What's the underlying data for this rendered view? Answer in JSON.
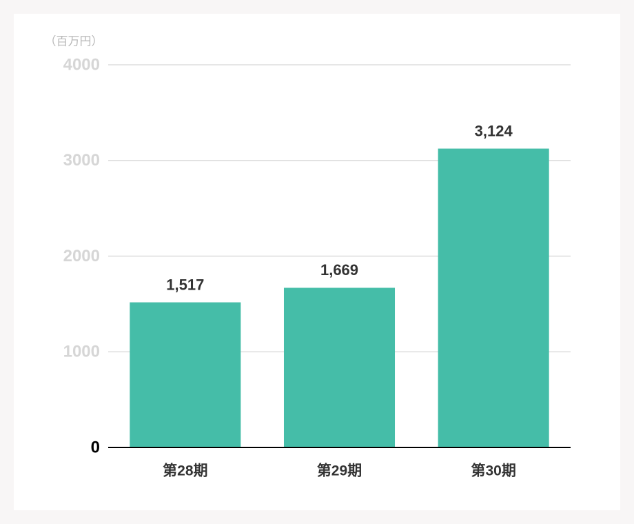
{
  "chart_data": {
    "type": "bar",
    "ylabel": "（百万円）",
    "categories": [
      "第28期",
      "第29期",
      "第30期"
    ],
    "values": [
      1517,
      1669,
      3124
    ],
    "value_labels": [
      "1,517",
      "1,669",
      "3,124"
    ],
    "color": "#45bda8",
    "ylim": [
      0,
      4000
    ],
    "yticks": [
      0,
      1000,
      2000,
      3000,
      4000
    ],
    "grid": true
  }
}
